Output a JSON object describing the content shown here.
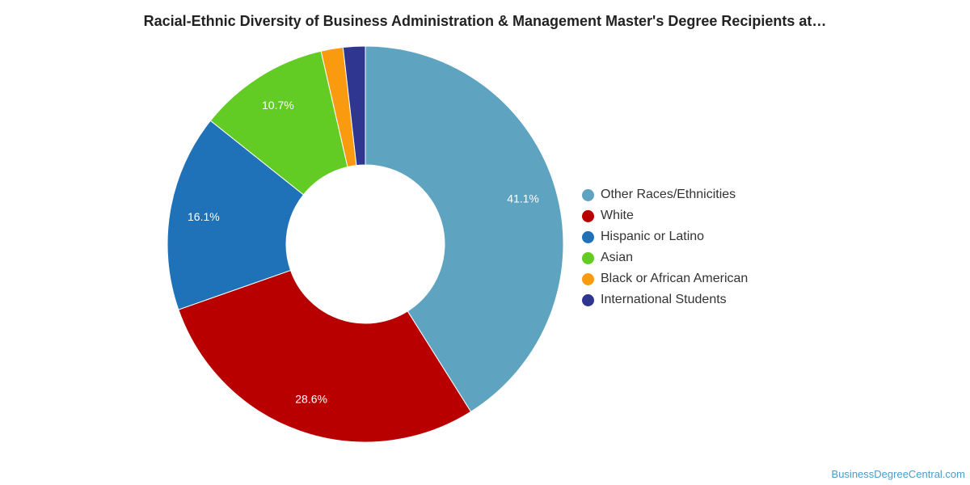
{
  "title": "Racial-Ethnic Diversity of Business Administration & Management Master's Degree Recipients at…",
  "watermark": "BusinessDegreeCentral.com",
  "chart_data": {
    "type": "pie",
    "variant": "donut",
    "title": "Racial-Ethnic Diversity of Business Administration & Management Master's Degree Recipients at…",
    "legend_position": "right",
    "slices": [
      {
        "label": "Other Races/Ethnicities",
        "value": 41.1,
        "display": "41.1%",
        "color": "#5ea3c0"
      },
      {
        "label": "White",
        "value": 28.6,
        "display": "28.6%",
        "color": "#b80000"
      },
      {
        "label": "Hispanic or Latino",
        "value": 16.1,
        "display": "16.1%",
        "color": "#1f72b8"
      },
      {
        "label": "Asian",
        "value": 10.7,
        "display": "10.7%",
        "color": "#62cc24"
      },
      {
        "label": "Black or African American",
        "value": 1.8,
        "display": "",
        "color": "#f99a0f"
      },
      {
        "label": "International Students",
        "value": 1.8,
        "display": "",
        "color": "#2e3690"
      }
    ]
  }
}
